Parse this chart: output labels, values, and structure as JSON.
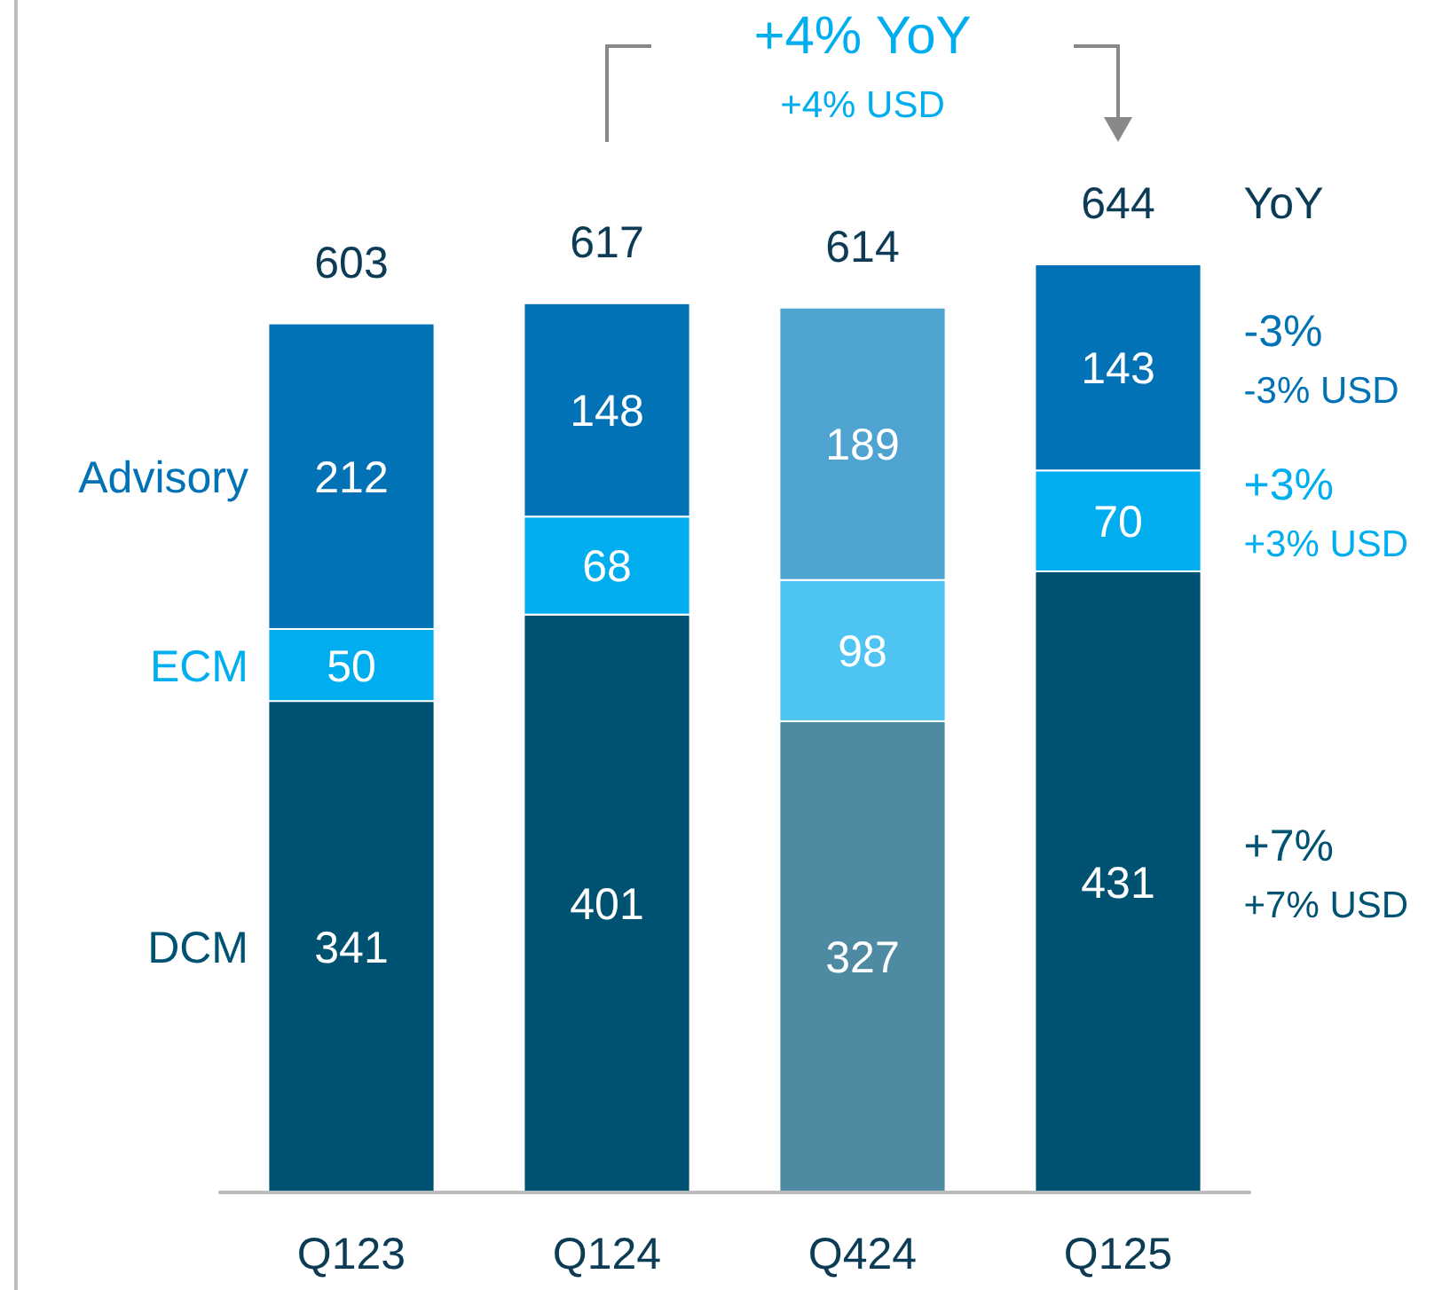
{
  "chart_data": {
    "type": "bar",
    "stacked": true,
    "data_labels": true,
    "categories": [
      "Q123",
      "Q124",
      "Q424",
      "Q125"
    ],
    "series": [
      {
        "name": "DCM",
        "color": "#005272",
        "colors": [
          "#005272",
          "#005272",
          "#4f8aa3",
          "#005272"
        ],
        "values": [
          341,
          401,
          327,
          431
        ]
      },
      {
        "name": "ECM",
        "color": "#00aeef",
        "colors": [
          "#00aeef",
          "#00aeef",
          "#4ec4f2",
          "#00aeef"
        ],
        "values": [
          50,
          68,
          98,
          70
        ]
      },
      {
        "name": "Advisory",
        "color": "#0072b5",
        "colors": [
          "#0072b5",
          "#0072b5",
          "#4fa3d0",
          "#0072b5"
        ],
        "values": [
          212,
          148,
          189,
          143
        ]
      }
    ],
    "totals": [
      "603",
      "617",
      "614",
      "644"
    ],
    "annotations": [
      "+4% YoY",
      "+4% USD",
      "YoY",
      "-3%",
      "-3% USD",
      "+3%",
      "+3% USD",
      "+7%",
      "+7% USD"
    ]
  }
}
